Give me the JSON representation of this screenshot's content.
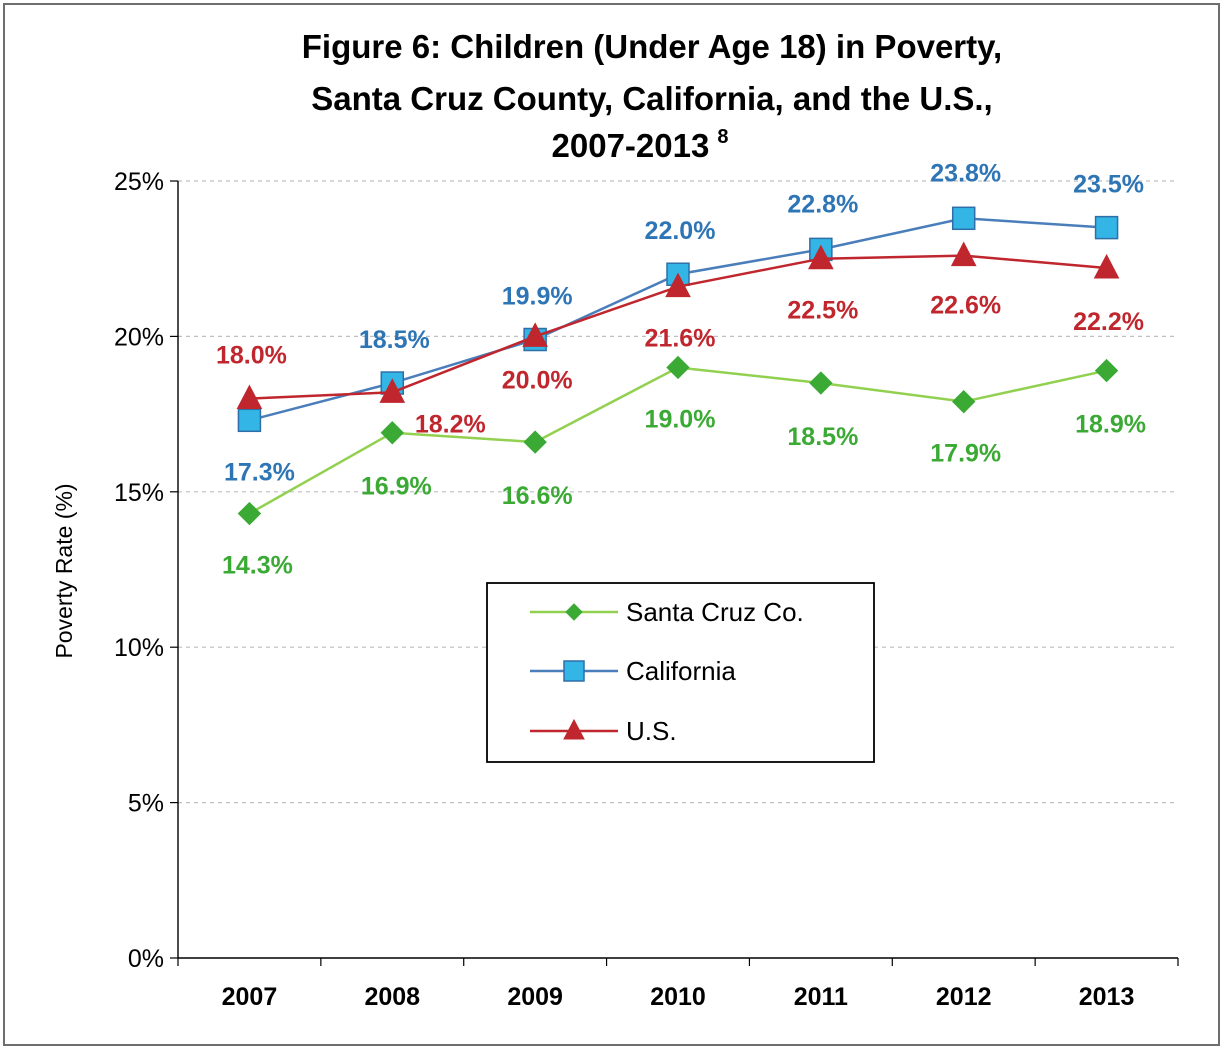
{
  "chart_data": {
    "type": "line",
    "title_lines": [
      "Figure 6:  Children (Under Age 18) in Poverty,",
      "Santa Cruz County, California, and the U.S.,",
      "2007-2013"
    ],
    "title_superscript": "8",
    "ylabel": "Poverty Rate (%)",
    "xlabel": "",
    "categories": [
      "2007",
      "2008",
      "2009",
      "2010",
      "2011",
      "2012",
      "2013"
    ],
    "ylim": [
      0,
      25
    ],
    "yticks": [
      0,
      5,
      10,
      15,
      20,
      25
    ],
    "ytick_labels": [
      "0%",
      "5%",
      "10%",
      "15%",
      "20%",
      "25%"
    ],
    "grid": "horizontal dashed",
    "legend_position": "center",
    "series": [
      {
        "name": "Santa Cruz Co.",
        "marker": "diamond",
        "line_color": "#92d050",
        "marker_color": "#3aaa35",
        "label_color": "#3aaa35",
        "values": [
          14.3,
          16.9,
          16.6,
          19.0,
          18.5,
          17.9,
          18.9
        ],
        "labels": [
          "14.3%",
          "16.9%",
          "16.6%",
          "19.0%",
          "18.5%",
          "17.9%",
          "18.9%"
        ]
      },
      {
        "name": "California",
        "marker": "square",
        "line_color": "#4a7ebb",
        "marker_color": "#33b5e5",
        "label_color": "#2e75b6",
        "values": [
          17.3,
          18.5,
          19.9,
          22.0,
          22.8,
          23.8,
          23.5
        ],
        "labels": [
          "17.3%",
          "18.5%",
          "19.9%",
          "22.0%",
          "22.8%",
          "23.8%",
          "23.5%"
        ]
      },
      {
        "name": "U.S.",
        "marker": "triangle",
        "line_color": "#c0262d",
        "marker_color": "#c0262d",
        "label_color": "#c0262d",
        "values": [
          18.0,
          18.2,
          20.0,
          21.6,
          22.5,
          22.6,
          22.2
        ],
        "labels": [
          "18.0%",
          "18.2%",
          "20.0%",
          "21.6%",
          "22.5%",
          "22.6%",
          "22.2%"
        ]
      }
    ]
  }
}
